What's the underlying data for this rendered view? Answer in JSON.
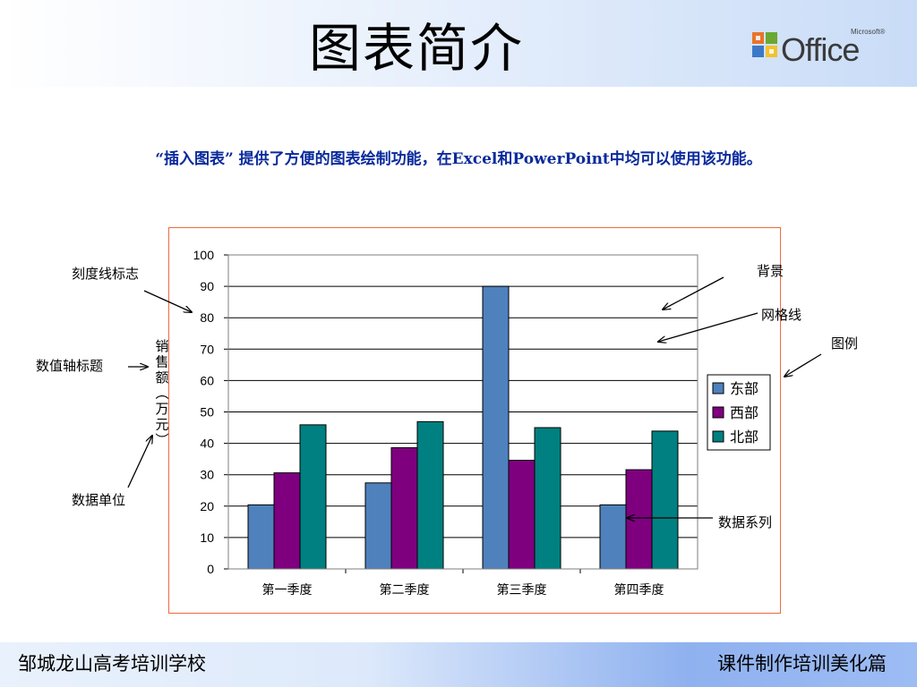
{
  "slide": {
    "title": "图表简介",
    "subtitle": "“插入图表” 提供了方便的图表绘制功能，在Excel和PowerPoint中均可以使用该功能。",
    "logo_brand": "Office",
    "logo_maker": "Microsoft®"
  },
  "callouts": {
    "tick_marks": "刻度线标志",
    "axis_title": "数值轴标题",
    "data_unit": "数据单位",
    "background": "背景",
    "gridlines": "网格线",
    "legend": "图例",
    "data_series": "数据系列"
  },
  "footer": {
    "left": "邹城龙山高考培训学校",
    "right": "课件制作培训美化篇"
  },
  "chart_data": {
    "type": "bar",
    "categories": [
      "第一季度",
      "第二季度",
      "第三季度",
      "第四季度"
    ],
    "series": [
      {
        "name": "东部",
        "values": [
          20.4,
          27.4,
          90,
          20.4
        ],
        "color": "#4f81bd"
      },
      {
        "name": "西部",
        "values": [
          30.6,
          38.6,
          34.6,
          31.6
        ],
        "color": "#7f007f"
      },
      {
        "name": "北部",
        "values": [
          45.9,
          46.9,
          45,
          43.9
        ],
        "color": "#008080"
      }
    ],
    "ylabel": "销售额(万元)",
    "ylim": [
      0,
      100
    ],
    "yticks": [
      0,
      10,
      20,
      30,
      40,
      50,
      60,
      70,
      80,
      90,
      100
    ],
    "grid": true,
    "legend_position": "right"
  }
}
